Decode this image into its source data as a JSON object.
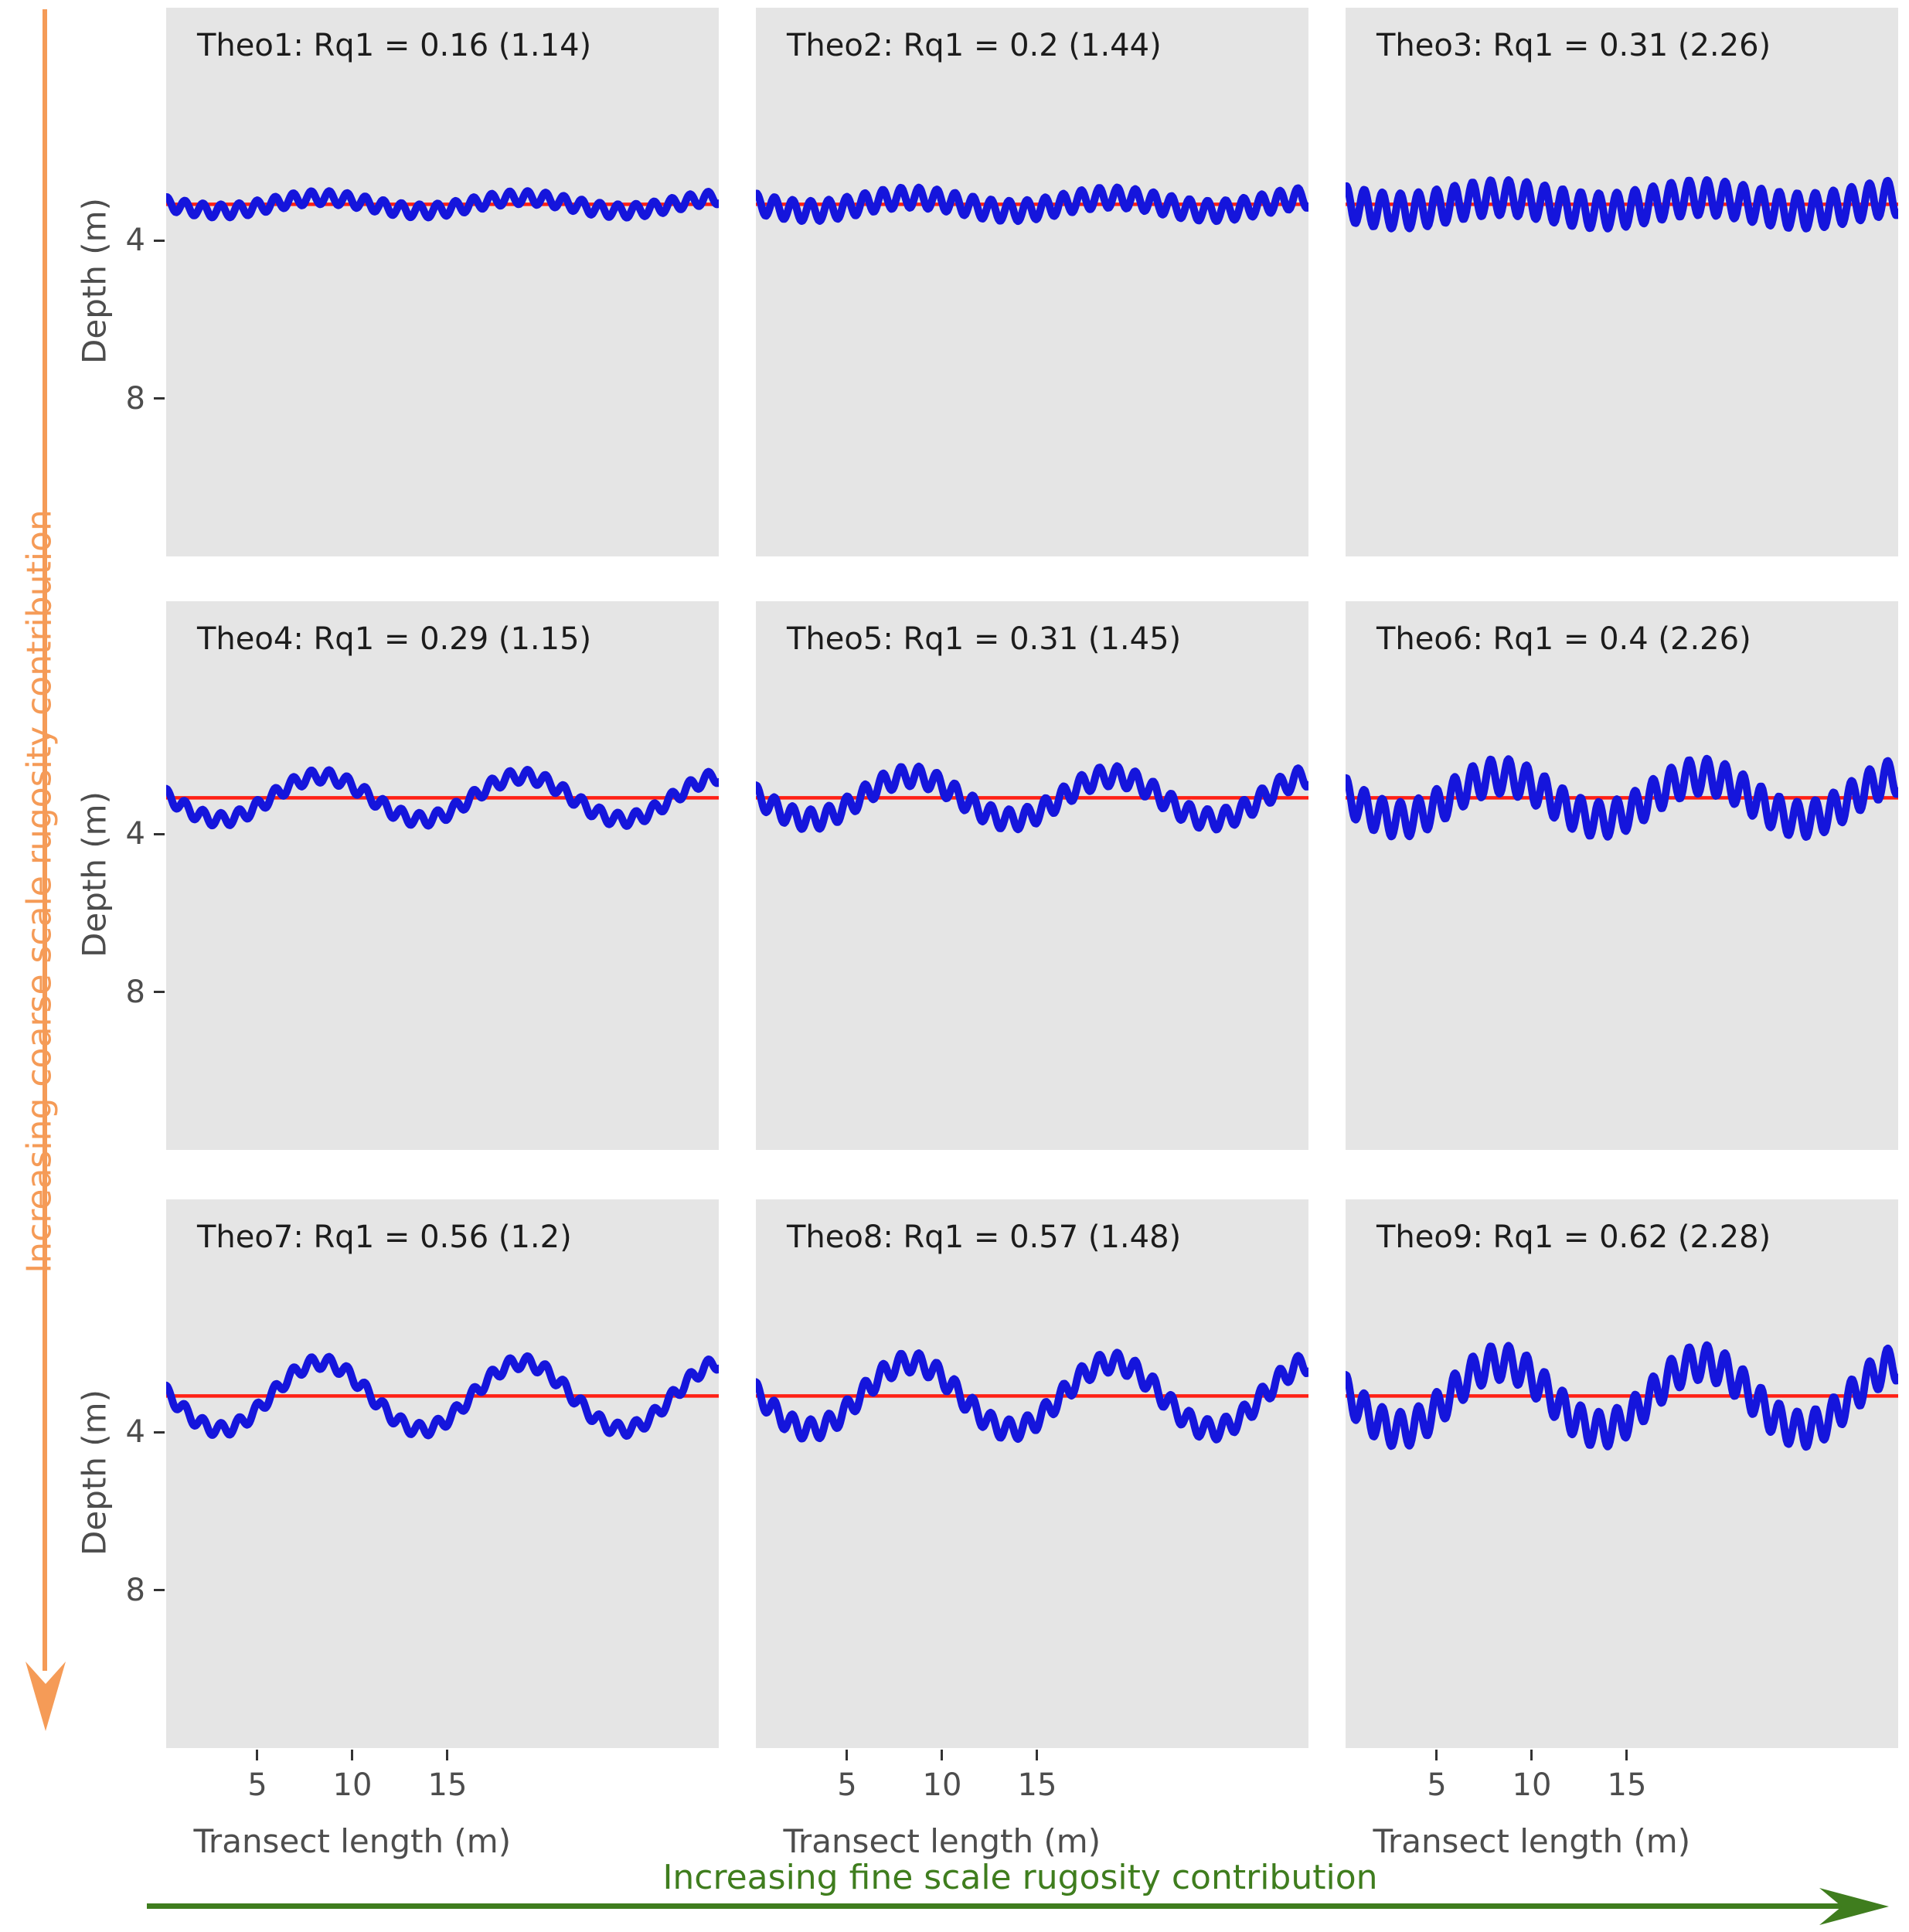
{
  "figure": {
    "description": "3x3 grid of theoretical reef depth-profile transects with increasing coarse and fine scale rugosity"
  },
  "chart_data": {
    "type": "line",
    "layout": "3x3 small multiples; rows increase coarse-scale rugosity, columns increase fine-scale rugosity",
    "panels": [
      {
        "name": "Theo1",
        "title": "Theo1: Rq1 = 0.16 (1.14)",
        "rq1": 0.16,
        "rq_paren": 1.14,
        "coarse_amplitude": 0.17,
        "fine_amplitude": 0.17
      },
      {
        "name": "Theo2",
        "title": "Theo2: Rq1 = 0.2 (1.44)",
        "rq1": 0.2,
        "rq_paren": 1.44,
        "coarse_amplitude": 0.17,
        "fine_amplitude": 0.26
      },
      {
        "name": "Theo3",
        "title": "Theo3: Rq1 = 0.31 (2.26)",
        "rq1": 0.31,
        "rq_paren": 2.26,
        "coarse_amplitude": 0.17,
        "fine_amplitude": 0.45
      },
      {
        "name": "Theo4",
        "title": "Theo4: Rq1 = 0.29 (1.15)",
        "rq1": 0.29,
        "rq_paren": 1.15,
        "coarse_amplitude": 0.55,
        "fine_amplitude": 0.17
      },
      {
        "name": "Theo5",
        "title": "Theo5: Rq1 = 0.31 (1.45)",
        "rq1": 0.31,
        "rq_paren": 1.45,
        "coarse_amplitude": 0.55,
        "fine_amplitude": 0.26
      },
      {
        "name": "Theo6",
        "title": "Theo6: Rq1 = 0.4 (2.26)",
        "rq1": 0.4,
        "rq_paren": 2.26,
        "coarse_amplitude": 0.55,
        "fine_amplitude": 0.45
      },
      {
        "name": "Theo7",
        "title": "Theo7: Rq1 = 0.56 (1.2)",
        "rq1": 0.56,
        "rq_paren": 1.2,
        "coarse_amplitude": 0.85,
        "fine_amplitude": 0.17
      },
      {
        "name": "Theo8",
        "title": "Theo8: Rq1 = 0.57 (1.48)",
        "rq1": 0.57,
        "rq_paren": 1.48,
        "coarse_amplitude": 0.85,
        "fine_amplitude": 0.26
      },
      {
        "name": "Theo9",
        "title": "Theo9: Rq1 = 0.62 (2.28)",
        "rq1": 0.62,
        "rq_paren": 2.28,
        "coarse_amplitude": 0.85,
        "fine_amplitude": 0.45
      }
    ],
    "x_axis": {
      "label": "Transect length (m)",
      "ticks": [
        "5",
        "10",
        "15"
      ],
      "tick_values": [
        5,
        10,
        15
      ],
      "range": [
        0.2,
        29.3
      ]
    },
    "y_axis": {
      "label": "Depth (m)",
      "ticks": [
        "4",
        "8"
      ],
      "tick_values": [
        4,
        8
      ],
      "range": [
        -1.9,
        12.0
      ],
      "reversed": true
    },
    "profile_model": {
      "mean_depth_m": 3.08,
      "coarse_period_m": 10.6,
      "coarse_zero_cross_m": 0.4,
      "fine_period_m": 0.95
    },
    "colors": {
      "profile_line": "#1515dc",
      "mean_line": "#ff2015",
      "panel_background": "#e5e5e5",
      "tick_text": "#4d4d4d",
      "title_text": "#1c1c1c"
    },
    "legend": null,
    "grid": "off"
  },
  "annotations": {
    "left_arrow": {
      "label": "Increasing coarse scale rugosity contribution",
      "color": "#f59b57",
      "direction": "down"
    },
    "bottom_arrow": {
      "label": "Increasing fine scale rugosity contribution",
      "color": "#3f7d1e",
      "direction": "right"
    }
  }
}
